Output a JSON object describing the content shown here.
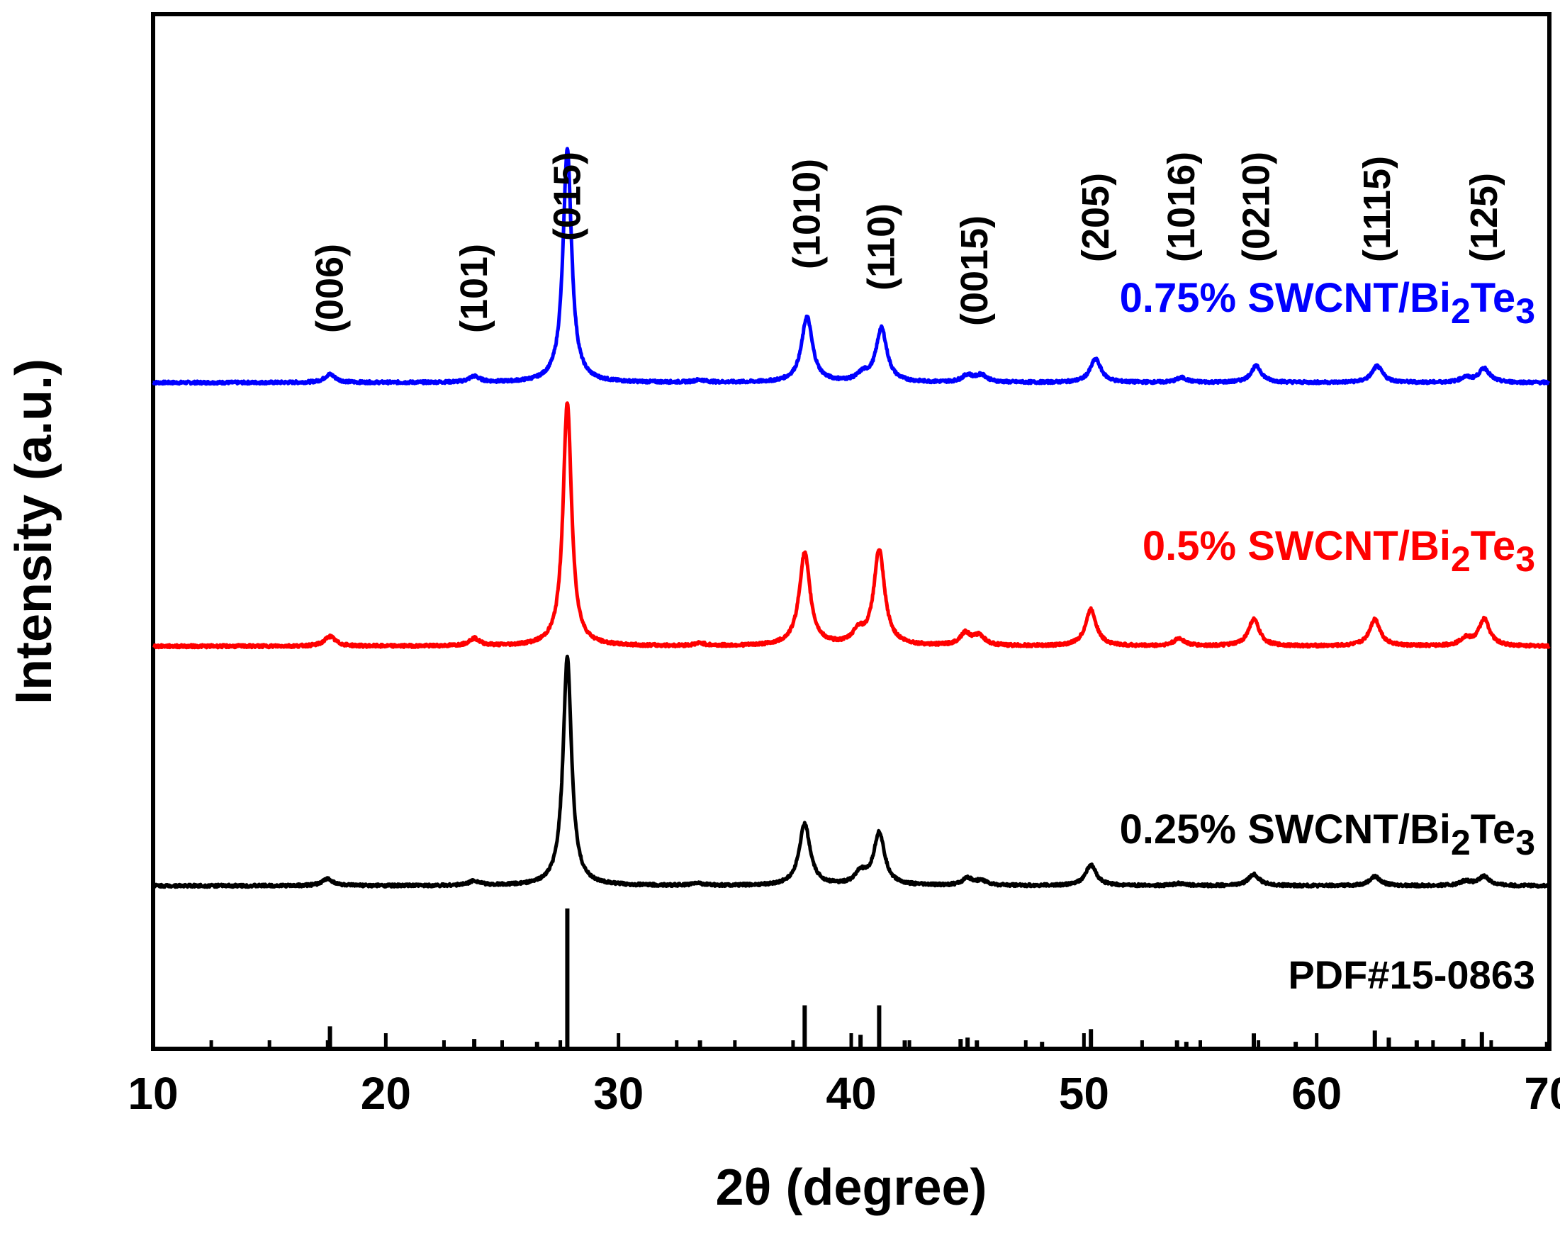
{
  "chart_data": {
    "type": "line",
    "title": "",
    "xlabel": "2θ (degree)",
    "ylabel": "Intensity (a.u.)",
    "xlim": [
      10,
      70
    ],
    "xticks": [
      10,
      20,
      30,
      40,
      50,
      60,
      70
    ],
    "xtick_labels": [
      "10",
      "20",
      "30",
      "40",
      "50",
      "60",
      "70"
    ],
    "grid": false,
    "series": [
      {
        "name": "0.75% SWCNT/Bi2Te3",
        "label_parts": [
          "0.75% SWCNT/Bi",
          "2",
          "Te",
          "3"
        ],
        "color": "#0000ff",
        "baseline": 0,
        "peaks": [
          {
            "x": 17.6,
            "h": 3.5
          },
          {
            "x": 23.8,
            "h": 2.5
          },
          {
            "x": 27.8,
            "h": 100
          },
          {
            "x": 33.5,
            "h": 1
          },
          {
            "x": 38.1,
            "h": 28
          },
          {
            "x": 40.5,
            "h": 3
          },
          {
            "x": 41.3,
            "h": 23
          },
          {
            "x": 45.0,
            "h": 3
          },
          {
            "x": 45.6,
            "h": 3
          },
          {
            "x": 50.5,
            "h": 10
          },
          {
            "x": 54.2,
            "h": 2
          },
          {
            "x": 57.4,
            "h": 7
          },
          {
            "x": 62.6,
            "h": 7
          },
          {
            "x": 66.4,
            "h": 2
          },
          {
            "x": 67.2,
            "h": 6
          }
        ]
      },
      {
        "name": "0.5% SWCNT/Bi2Te3",
        "label_parts": [
          "0.5% SWCNT/Bi",
          "2",
          "Te",
          "3"
        ],
        "color": "#ff0000",
        "baseline": 0,
        "peaks": [
          {
            "x": 17.6,
            "h": 4
          },
          {
            "x": 23.8,
            "h": 3
          },
          {
            "x": 27.8,
            "h": 100
          },
          {
            "x": 33.5,
            "h": 1
          },
          {
            "x": 38.0,
            "h": 38
          },
          {
            "x": 40.3,
            "h": 5
          },
          {
            "x": 41.2,
            "h": 39
          },
          {
            "x": 44.9,
            "h": 5
          },
          {
            "x": 45.5,
            "h": 4
          },
          {
            "x": 50.3,
            "h": 15
          },
          {
            "x": 54.1,
            "h": 3
          },
          {
            "x": 57.3,
            "h": 11
          },
          {
            "x": 62.5,
            "h": 11
          },
          {
            "x": 66.4,
            "h": 3
          },
          {
            "x": 67.2,
            "h": 11
          }
        ]
      },
      {
        "name": "0.25% SWCNT/Bi2Te3",
        "label_parts": [
          "0.25% SWCNT/Bi",
          "2",
          "Te",
          "3"
        ],
        "color": "#000000",
        "baseline": 0,
        "peaks": [
          {
            "x": 17.5,
            "h": 3
          },
          {
            "x": 23.8,
            "h": 2
          },
          {
            "x": 27.8,
            "h": 100
          },
          {
            "x": 33.4,
            "h": 1
          },
          {
            "x": 38.0,
            "h": 27
          },
          {
            "x": 40.4,
            "h": 5
          },
          {
            "x": 41.2,
            "h": 23
          },
          {
            "x": 45.0,
            "h": 3
          },
          {
            "x": 45.6,
            "h": 2
          },
          {
            "x": 50.3,
            "h": 9
          },
          {
            "x": 54.1,
            "h": 1
          },
          {
            "x": 57.3,
            "h": 5
          },
          {
            "x": 62.5,
            "h": 4
          },
          {
            "x": 66.4,
            "h": 2
          },
          {
            "x": 67.2,
            "h": 4
          }
        ]
      }
    ],
    "reference": {
      "name": "PDF#15-0863",
      "lines": [
        {
          "x": 17.6,
          "h": 16
        },
        {
          "x": 23.8,
          "h": 7
        },
        {
          "x": 26.5,
          "h": 5
        },
        {
          "x": 27.8,
          "h": 100
        },
        {
          "x": 33.5,
          "h": 6
        },
        {
          "x": 38.0,
          "h": 31
        },
        {
          "x": 40.4,
          "h": 10
        },
        {
          "x": 41.2,
          "h": 31
        },
        {
          "x": 42.3,
          "h": 6
        },
        {
          "x": 44.7,
          "h": 7
        },
        {
          "x": 45.0,
          "h": 8
        },
        {
          "x": 45.4,
          "h": 6
        },
        {
          "x": 48.2,
          "h": 5
        },
        {
          "x": 50.3,
          "h": 14
        },
        {
          "x": 54.0,
          "h": 6
        },
        {
          "x": 54.4,
          "h": 5
        },
        {
          "x": 57.3,
          "h": 11
        },
        {
          "x": 59.1,
          "h": 5
        },
        {
          "x": 62.5,
          "h": 13
        },
        {
          "x": 63.1,
          "h": 8
        },
        {
          "x": 64.3,
          "h": 6
        },
        {
          "x": 66.3,
          "h": 7
        },
        {
          "x": 67.1,
          "h": 12
        },
        {
          "x": 69.9,
          "h": 5
        }
      ]
    },
    "annotations": [
      {
        "text": "(006)",
        "x": 17.6
      },
      {
        "text": "(101)",
        "x": 23.8
      },
      {
        "text": "(015)",
        "x": 27.8
      },
      {
        "text": "(1010)",
        "x": 38.1
      },
      {
        "text": "(110)",
        "x": 41.3
      },
      {
        "text": "(0015)",
        "x": 45.3
      },
      {
        "text": "(205)",
        "x": 50.5
      },
      {
        "text": "(1016)",
        "x": 54.2
      },
      {
        "text": "(0210)",
        "x": 57.4
      },
      {
        "text": "(1115)",
        "x": 62.6
      },
      {
        "text": "(125)",
        "x": 67.2
      }
    ]
  }
}
